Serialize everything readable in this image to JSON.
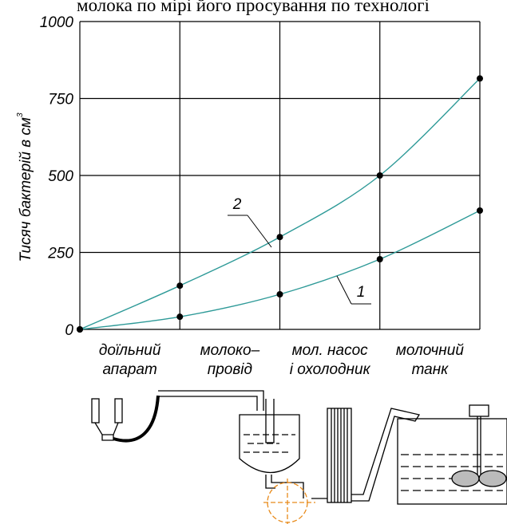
{
  "header_text": "молока по мірі його просування по технологі",
  "chart_data": {
    "type": "line",
    "y_label": "Тисяч бактерій в см",
    "y_label_sup": "3",
    "x": [
      0,
      1,
      2,
      3,
      4
    ],
    "xlim": [
      0,
      4
    ],
    "stage_labels": [
      [
        "доїльний",
        "апарат"
      ],
      [
        "молоко–",
        "провід"
      ],
      [
        "мол. насос",
        "і охолодник"
      ],
      [
        "молочний",
        "танк"
      ]
    ],
    "ylim": [
      0,
      1000
    ],
    "yticks": [
      0,
      250,
      500,
      750,
      1000
    ],
    "grid": true,
    "series": [
      {
        "name": "1",
        "color": "#2e9a98",
        "values": [
          0,
          41,
          114,
          228,
          386
        ]
      },
      {
        "name": "2",
        "color": "#2e9a98",
        "values": [
          0,
          142,
          300,
          500,
          815
        ]
      }
    ]
  }
}
